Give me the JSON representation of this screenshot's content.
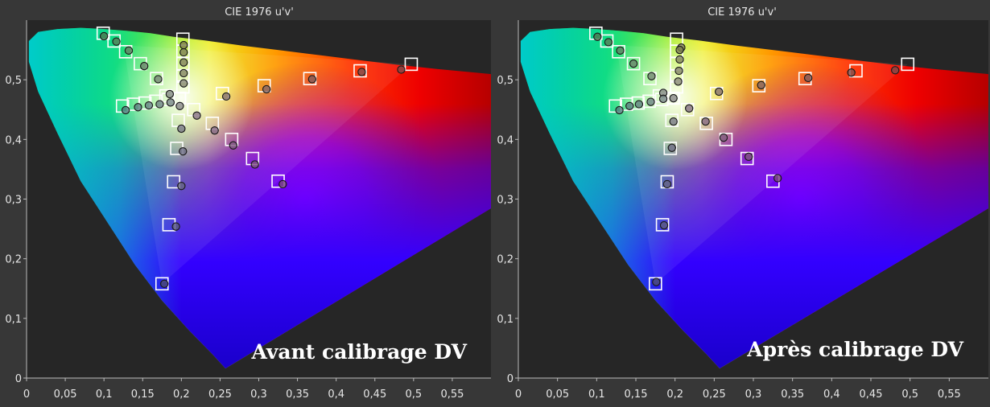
{
  "colors": {
    "page_background": "#373737",
    "plot_background": "#262626",
    "axis_text": "#e6e6e6",
    "target_marker": "#ffffff",
    "measured_marker_stroke": "#1a1a1a"
  },
  "panels": [
    {
      "title": "CIE 1976 u'v'",
      "overlay_label": "Avant calibrage DV"
    },
    {
      "title": "CIE 1976 u'v'",
      "overlay_label": "Après calibrage DV"
    }
  ],
  "chart_data": [
    {
      "type": "scatter",
      "title": "CIE 1976 u'v'",
      "annotation": "Avant calibrage DV",
      "xlim": [
        0,
        0.6
      ],
      "ylim": [
        0,
        0.6
      ],
      "xticks": [
        0,
        0.05,
        0.1,
        0.15,
        0.2,
        0.25,
        0.3,
        0.35,
        0.4,
        0.45,
        0.5,
        0.55
      ],
      "xtick_labels": [
        "0",
        "0,05",
        "0,1",
        "0,15",
        "0,2",
        "0,25",
        "0,3",
        "0,35",
        "0,4",
        "0,45",
        "0,5",
        "0,55"
      ],
      "yticks": [
        0,
        0.1,
        0.2,
        0.3,
        0.4,
        0.5
      ],
      "ytick_labels": [
        "0",
        "0,1",
        "0,2",
        "0,3",
        "0,4",
        "0,5"
      ],
      "grid": false,
      "targets": [
        {
          "u": 0.198,
          "v": 0.469
        },
        {
          "u": 0.175,
          "v": 0.158
        },
        {
          "u": 0.184,
          "v": 0.257
        },
        {
          "u": 0.19,
          "v": 0.329
        },
        {
          "u": 0.194,
          "v": 0.385
        },
        {
          "u": 0.196,
          "v": 0.432
        },
        {
          "u": 0.099,
          "v": 0.578
        },
        {
          "u": 0.113,
          "v": 0.565
        },
        {
          "u": 0.128,
          "v": 0.547
        },
        {
          "u": 0.147,
          "v": 0.527
        },
        {
          "u": 0.168,
          "v": 0.502
        },
        {
          "u": 0.18,
          "v": 0.473
        },
        {
          "u": 0.124,
          "v": 0.456
        },
        {
          "u": 0.138,
          "v": 0.459
        },
        {
          "u": 0.153,
          "v": 0.461
        },
        {
          "u": 0.167,
          "v": 0.464
        },
        {
          "u": 0.183,
          "v": 0.467
        },
        {
          "u": 0.202,
          "v": 0.568
        },
        {
          "u": 0.202,
          "v": 0.548
        },
        {
          "u": 0.202,
          "v": 0.527
        },
        {
          "u": 0.202,
          "v": 0.506
        },
        {
          "u": 0.202,
          "v": 0.488
        },
        {
          "u": 0.497,
          "v": 0.526
        },
        {
          "u": 0.431,
          "v": 0.515
        },
        {
          "u": 0.366,
          "v": 0.502
        },
        {
          "u": 0.307,
          "v": 0.49
        },
        {
          "u": 0.253,
          "v": 0.477
        },
        {
          "u": 0.325,
          "v": 0.33
        },
        {
          "u": 0.292,
          "v": 0.368
        },
        {
          "u": 0.265,
          "v": 0.4
        },
        {
          "u": 0.24,
          "v": 0.427
        },
        {
          "u": 0.216,
          "v": 0.45
        }
      ],
      "measured": [
        {
          "u": 0.198,
          "v": 0.456,
          "color": "#f2f2f2"
        },
        {
          "u": 0.178,
          "v": 0.158,
          "color": "#3a3aa8"
        },
        {
          "u": 0.193,
          "v": 0.254,
          "color": "#6a6ad8"
        },
        {
          "u": 0.2,
          "v": 0.322,
          "color": "#8c8ce4"
        },
        {
          "u": 0.202,
          "v": 0.38,
          "color": "#a6a6ee"
        },
        {
          "u": 0.2,
          "v": 0.418,
          "color": "#c8c8f4"
        },
        {
          "u": 0.1,
          "v": 0.573,
          "color": "#3fbf3f"
        },
        {
          "u": 0.116,
          "v": 0.564,
          "color": "#5fcf5f"
        },
        {
          "u": 0.132,
          "v": 0.549,
          "color": "#7fdc7f"
        },
        {
          "u": 0.152,
          "v": 0.523,
          "color": "#9fe59f"
        },
        {
          "u": 0.17,
          "v": 0.501,
          "color": "#bfeebf"
        },
        {
          "u": 0.185,
          "v": 0.476,
          "color": "#dff6df"
        },
        {
          "u": 0.128,
          "v": 0.449,
          "color": "#3fcfcf"
        },
        {
          "u": 0.144,
          "v": 0.454,
          "color": "#5fd9d9"
        },
        {
          "u": 0.158,
          "v": 0.457,
          "color": "#7fe2e2"
        },
        {
          "u": 0.172,
          "v": 0.459,
          "color": "#9febeb"
        },
        {
          "u": 0.186,
          "v": 0.462,
          "color": "#bff3f3"
        },
        {
          "u": 0.203,
          "v": 0.558,
          "color": "#cfcf2f"
        },
        {
          "u": 0.203,
          "v": 0.546,
          "color": "#d9d94f"
        },
        {
          "u": 0.203,
          "v": 0.529,
          "color": "#e2e26f"
        },
        {
          "u": 0.203,
          "v": 0.511,
          "color": "#ebeb8f"
        },
        {
          "u": 0.203,
          "v": 0.494,
          "color": "#f3f3af"
        },
        {
          "u": 0.484,
          "v": 0.517,
          "color": "#cf2f2f"
        },
        {
          "u": 0.433,
          "v": 0.513,
          "color": "#d94f4f"
        },
        {
          "u": 0.369,
          "v": 0.501,
          "color": "#e26f6f"
        },
        {
          "u": 0.31,
          "v": 0.484,
          "color": "#eb8f8f"
        },
        {
          "u": 0.258,
          "v": 0.472,
          "color": "#f3afaf"
        },
        {
          "u": 0.331,
          "v": 0.325,
          "color": "#cf2fcf"
        },
        {
          "u": 0.295,
          "v": 0.358,
          "color": "#d94fd9"
        },
        {
          "u": 0.267,
          "v": 0.39,
          "color": "#e26fe2"
        },
        {
          "u": 0.243,
          "v": 0.415,
          "color": "#eb8feb"
        },
        {
          "u": 0.22,
          "v": 0.44,
          "color": "#f3aff3"
        }
      ]
    },
    {
      "type": "scatter",
      "title": "CIE 1976 u'v'",
      "annotation": "Après calibrage DV",
      "xlim": [
        0,
        0.6
      ],
      "ylim": [
        0,
        0.6
      ],
      "xticks": [
        0,
        0.05,
        0.1,
        0.15,
        0.2,
        0.25,
        0.3,
        0.35,
        0.4,
        0.45,
        0.5,
        0.55
      ],
      "xtick_labels": [
        "0",
        "0,05",
        "0,1",
        "0,15",
        "0,2",
        "0,25",
        "0,3",
        "0,35",
        "0,4",
        "0,45",
        "0,5",
        "0,55"
      ],
      "yticks": [
        0,
        0.1,
        0.2,
        0.3,
        0.4,
        0.5
      ],
      "ytick_labels": [
        "0",
        "0,1",
        "0,2",
        "0,3",
        "0,4",
        "0,5"
      ],
      "grid": false,
      "targets": [
        {
          "u": 0.198,
          "v": 0.469
        },
        {
          "u": 0.175,
          "v": 0.158
        },
        {
          "u": 0.184,
          "v": 0.257
        },
        {
          "u": 0.19,
          "v": 0.329
        },
        {
          "u": 0.194,
          "v": 0.385
        },
        {
          "u": 0.196,
          "v": 0.432
        },
        {
          "u": 0.099,
          "v": 0.578
        },
        {
          "u": 0.113,
          "v": 0.565
        },
        {
          "u": 0.128,
          "v": 0.547
        },
        {
          "u": 0.147,
          "v": 0.527
        },
        {
          "u": 0.168,
          "v": 0.502
        },
        {
          "u": 0.18,
          "v": 0.473
        },
        {
          "u": 0.124,
          "v": 0.456
        },
        {
          "u": 0.138,
          "v": 0.459
        },
        {
          "u": 0.153,
          "v": 0.461
        },
        {
          "u": 0.167,
          "v": 0.464
        },
        {
          "u": 0.183,
          "v": 0.467
        },
        {
          "u": 0.202,
          "v": 0.568
        },
        {
          "u": 0.202,
          "v": 0.548
        },
        {
          "u": 0.202,
          "v": 0.527
        },
        {
          "u": 0.202,
          "v": 0.506
        },
        {
          "u": 0.202,
          "v": 0.488
        },
        {
          "u": 0.497,
          "v": 0.526
        },
        {
          "u": 0.431,
          "v": 0.515
        },
        {
          "u": 0.366,
          "v": 0.502
        },
        {
          "u": 0.307,
          "v": 0.49
        },
        {
          "u": 0.253,
          "v": 0.477
        },
        {
          "u": 0.325,
          "v": 0.33
        },
        {
          "u": 0.292,
          "v": 0.368
        },
        {
          "u": 0.265,
          "v": 0.4
        },
        {
          "u": 0.24,
          "v": 0.427
        },
        {
          "u": 0.216,
          "v": 0.45
        }
      ],
      "measured": [
        {
          "u": 0.198,
          "v": 0.469,
          "color": "#f2f2f2"
        },
        {
          "u": 0.176,
          "v": 0.161,
          "color": "#3a3aa8"
        },
        {
          "u": 0.186,
          "v": 0.256,
          "color": "#6a6ad8"
        },
        {
          "u": 0.19,
          "v": 0.325,
          "color": "#8c8ce4"
        },
        {
          "u": 0.196,
          "v": 0.386,
          "color": "#a6a6ee"
        },
        {
          "u": 0.198,
          "v": 0.43,
          "color": "#c8c8f4"
        },
        {
          "u": 0.101,
          "v": 0.572,
          "color": "#3fbf3f"
        },
        {
          "u": 0.115,
          "v": 0.563,
          "color": "#5fcf5f"
        },
        {
          "u": 0.13,
          "v": 0.549,
          "color": "#7fdc7f"
        },
        {
          "u": 0.147,
          "v": 0.527,
          "color": "#9fe59f"
        },
        {
          "u": 0.17,
          "v": 0.506,
          "color": "#bfeebf"
        },
        {
          "u": 0.185,
          "v": 0.478,
          "color": "#dff6df"
        },
        {
          "u": 0.129,
          "v": 0.449,
          "color": "#3fcfcf"
        },
        {
          "u": 0.142,
          "v": 0.456,
          "color": "#5fd9d9"
        },
        {
          "u": 0.154,
          "v": 0.459,
          "color": "#7fe2e2"
        },
        {
          "u": 0.169,
          "v": 0.463,
          "color": "#9febeb"
        },
        {
          "u": 0.185,
          "v": 0.468,
          "color": "#bff3f3"
        },
        {
          "u": 0.208,
          "v": 0.554,
          "color": "#cfcf2f"
        },
        {
          "u": 0.206,
          "v": 0.55,
          "color": "#d9d94f"
        },
        {
          "u": 0.206,
          "v": 0.534,
          "color": "#e2e26f"
        },
        {
          "u": 0.205,
          "v": 0.515,
          "color": "#ebeb8f"
        },
        {
          "u": 0.204,
          "v": 0.497,
          "color": "#f3f3af"
        },
        {
          "u": 0.481,
          "v": 0.516,
          "color": "#cf2f2f"
        },
        {
          "u": 0.425,
          "v": 0.512,
          "color": "#d94f4f"
        },
        {
          "u": 0.37,
          "v": 0.503,
          "color": "#e26f6f"
        },
        {
          "u": 0.31,
          "v": 0.491,
          "color": "#eb8f8f"
        },
        {
          "u": 0.256,
          "v": 0.48,
          "color": "#f3afaf"
        },
        {
          "u": 0.331,
          "v": 0.335,
          "color": "#cf2fcf"
        },
        {
          "u": 0.294,
          "v": 0.371,
          "color": "#d94fd9"
        },
        {
          "u": 0.262,
          "v": 0.403,
          "color": "#e26fe2"
        },
        {
          "u": 0.239,
          "v": 0.43,
          "color": "#eb8feb"
        },
        {
          "u": 0.218,
          "v": 0.452,
          "color": "#f3aff3"
        }
      ]
    }
  ]
}
